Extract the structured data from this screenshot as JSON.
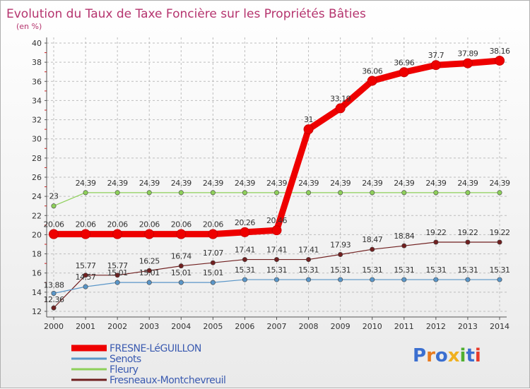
{
  "chart_data": {
    "type": "line",
    "title": "Evolution du Taux de Taxe Foncière sur les Propriétés Bâties",
    "subtitle": "(en %)",
    "xlabel": "",
    "ylabel": "",
    "x": [
      "2000",
      "2001",
      "2002",
      "2003",
      "2004",
      "2005",
      "2006",
      "2007",
      "2008",
      "2009",
      "2010",
      "2011",
      "2012",
      "2013",
      "2014"
    ],
    "ylim": [
      12,
      40
    ],
    "yticks": [
      12,
      14,
      16,
      18,
      20,
      22,
      24,
      26,
      28,
      30,
      32,
      34,
      36,
      38,
      40
    ],
    "grid": true,
    "legend_position": "bottom-left",
    "series": [
      {
        "name": "FRESNE-LéGUILLON",
        "color": "#ee0000",
        "values": [
          20.06,
          20.06,
          20.06,
          20.06,
          20.06,
          20.06,
          20.26,
          20.46,
          31,
          33.19,
          36.06,
          36.96,
          37.7,
          37.89,
          38.16
        ],
        "labels": [
          "20.06",
          "20.06",
          "20.06",
          "20.06",
          "20.06",
          "20.06",
          "20.26",
          "20.46",
          "31",
          "33.19",
          "36.06",
          "36.96",
          "37.7",
          "37.89",
          "38.16"
        ]
      },
      {
        "name": "Senots",
        "color": "#5a96c8",
        "values": [
          13.88,
          14.57,
          15.01,
          15.01,
          15.01,
          15.01,
          15.31,
          15.31,
          15.31,
          15.31,
          15.31,
          15.31,
          15.31,
          15.31,
          15.31
        ],
        "labels": [
          "13.88",
          "14.57",
          "15.01",
          "15.01",
          "15.01",
          "15.01",
          "15.31",
          "15.31",
          "15.31",
          "15.31",
          "15.31",
          "15.31",
          "15.31",
          "15.31",
          "15.31"
        ]
      },
      {
        "name": "Fleury",
        "color": "#8ed05a",
        "values": [
          23,
          24.39,
          24.39,
          24.39,
          24.39,
          24.39,
          24.39,
          24.39,
          24.39,
          24.39,
          24.39,
          24.39,
          24.39,
          24.39,
          24.39
        ],
        "labels": [
          "23",
          "24.39",
          "24.39",
          "24.39",
          "24.39",
          "24.39",
          "24.39",
          "24.39",
          "24.39",
          "24.39",
          "24.39",
          "24.39",
          "24.39",
          "24.39",
          "24.39"
        ]
      },
      {
        "name": "Fresneaux-Montchevreuil",
        "color": "#702020",
        "values": [
          12.36,
          15.77,
          15.77,
          16.25,
          16.74,
          17.07,
          17.41,
          17.41,
          17.41,
          17.93,
          18.47,
          18.84,
          19.22,
          19.22,
          19.22
        ],
        "labels": [
          "12.36",
          "15.77",
          "15.77",
          "16.25",
          "16.74",
          "17.07",
          "17.41",
          "17.41",
          "17.41",
          "17.93",
          "18.47",
          "18.84",
          "19.22",
          "19.22",
          "19.22"
        ]
      }
    ]
  },
  "brand": {
    "name": "Proxiti",
    "letters": [
      "P",
      "r",
      "o",
      "x",
      "i",
      "t",
      "i"
    ],
    "colors": [
      "#3b6fd0",
      "#e87a1e",
      "#3b6fd0",
      "#f0b020",
      "#50b030",
      "#3b6fd0",
      "#e83a2a"
    ]
  }
}
